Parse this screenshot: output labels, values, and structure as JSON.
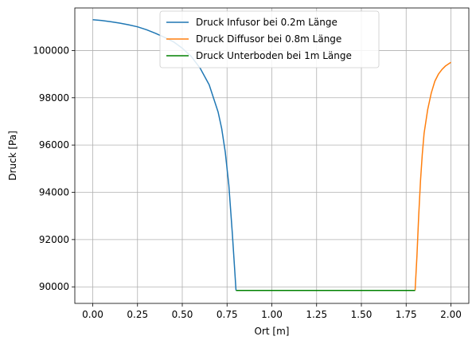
{
  "chart_data": {
    "type": "line",
    "xlabel": "Ort [m]",
    "ylabel": "Druck [Pa]",
    "xlim": [
      -0.1,
      2.1
    ],
    "ylim": [
      89300,
      101800
    ],
    "x_ticks": [
      0.0,
      0.25,
      0.5,
      0.75,
      1.0,
      1.25,
      1.5,
      1.75,
      2.0
    ],
    "x_tick_labels": [
      "0.00",
      "0.25",
      "0.50",
      "0.75",
      "1.00",
      "1.25",
      "1.50",
      "1.75",
      "2.00"
    ],
    "y_ticks": [
      90000,
      92000,
      94000,
      96000,
      98000,
      100000
    ],
    "y_tick_labels": [
      "90000",
      "92000",
      "94000",
      "96000",
      "98000",
      "100000"
    ],
    "grid": true,
    "legend_position": "upper-center",
    "series": [
      {
        "name": "Druck Infusor bei 0.2m Länge",
        "color": "#1f77b4",
        "x": [
          0.0,
          0.05,
          0.1,
          0.15,
          0.2,
          0.25,
          0.3,
          0.35,
          0.4,
          0.45,
          0.5,
          0.55,
          0.6,
          0.65,
          0.7,
          0.72,
          0.74,
          0.76,
          0.78,
          0.79,
          0.8
        ],
        "y": [
          101300,
          101270,
          101220,
          101160,
          101090,
          101000,
          100880,
          100730,
          100560,
          100370,
          100100,
          99750,
          99250,
          98550,
          97400,
          96700,
          95700,
          94300,
          92200,
          91000,
          89850
        ]
      },
      {
        "name": "Druck Diffusor bei 0.8m Länge",
        "color": "#ff7f0e",
        "x": [
          1.8,
          1.81,
          1.82,
          1.83,
          1.84,
          1.85,
          1.87,
          1.89,
          1.91,
          1.93,
          1.95,
          1.97,
          2.0
        ],
        "y": [
          89850,
          91300,
          93000,
          94500,
          95600,
          96500,
          97500,
          98200,
          98700,
          99000,
          99200,
          99350,
          99500
        ]
      },
      {
        "name": "Druck Unterboden bei 1m Länge",
        "color": "#008000",
        "x": [
          0.8,
          1.8
        ],
        "y": [
          89850,
          89850
        ]
      }
    ]
  }
}
